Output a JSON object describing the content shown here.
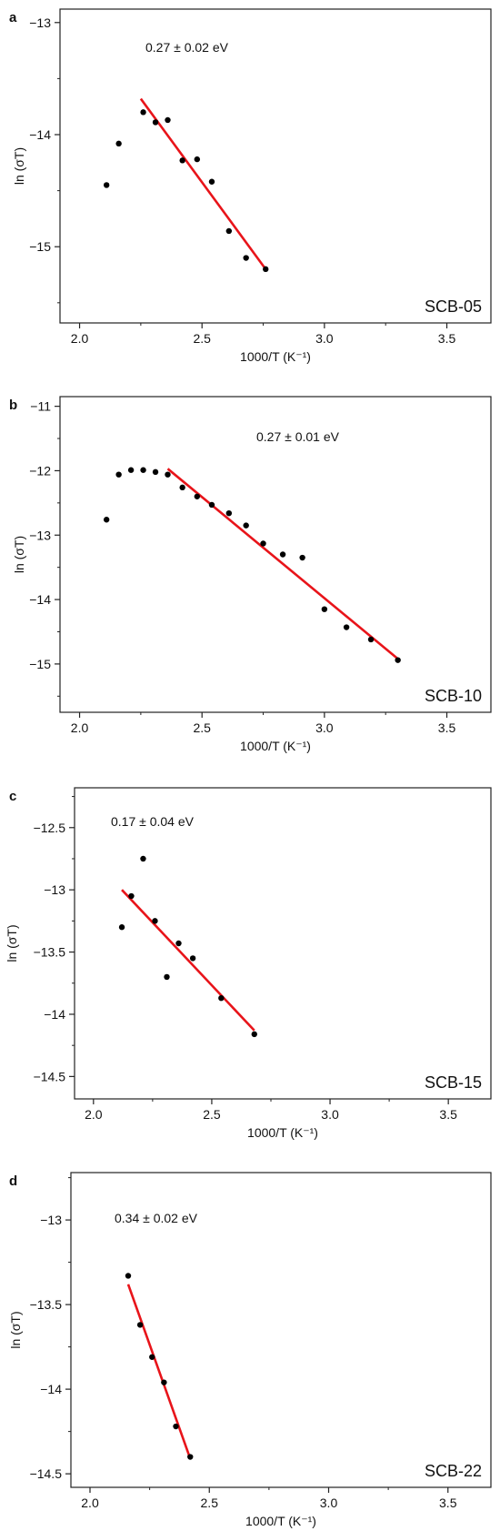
{
  "chart_data": [
    {
      "type": "scatter",
      "panel_label": "a",
      "sample": "SCB-05",
      "annotation": "0.27 ± 0.02 eV",
      "xlabel": "1000/T (K⁻¹)",
      "ylabel": "ln (σT)",
      "xlim": [
        1.92,
        3.68
      ],
      "ylim": [
        -15.68,
        -12.88
      ],
      "xticks": [
        2.0,
        2.5,
        3.0,
        3.5
      ],
      "xtick_labels": [
        "2.0",
        "2.5",
        "3.0",
        "3.5"
      ],
      "yticks": [
        -13,
        -14,
        -15
      ],
      "ytick_labels": [
        "−13",
        "−14",
        "−15"
      ],
      "grid": false,
      "series": [
        {
          "type": "scatter",
          "color": "#000000",
          "x": [
            2.11,
            2.16,
            2.26,
            2.31,
            2.36,
            2.42,
            2.48,
            2.54,
            2.61,
            2.68,
            2.76
          ],
          "y": [
            -14.45,
            -14.08,
            -13.8,
            -13.89,
            -13.87,
            -14.23,
            -14.22,
            -14.42,
            -14.86,
            -15.1,
            -15.2
          ]
        },
        {
          "type": "line",
          "color": "#e8141a",
          "x": [
            2.25,
            2.76
          ],
          "y": [
            -13.68,
            -15.2
          ]
        }
      ]
    },
    {
      "type": "scatter",
      "panel_label": "b",
      "sample": "SCB-10",
      "annotation": "0.27 ± 0.01 eV",
      "xlabel": "1000/T (K⁻¹)",
      "ylabel": "ln (σT)",
      "xlim": [
        1.92,
        3.68
      ],
      "ylim": [
        -15.75,
        -10.85
      ],
      "xticks": [
        2.0,
        2.5,
        3.0,
        3.5
      ],
      "xtick_labels": [
        "2.0",
        "2.5",
        "3.0",
        "3.5"
      ],
      "yticks": [
        -11,
        -12,
        -13,
        -14,
        -15
      ],
      "ytick_labels": [
        "−11",
        "−12",
        "−13",
        "−14",
        "−15"
      ],
      "grid": false,
      "series": [
        {
          "type": "scatter",
          "color": "#000000",
          "x": [
            2.11,
            2.16,
            2.21,
            2.26,
            2.31,
            2.36,
            2.42,
            2.48,
            2.54,
            2.61,
            2.68,
            2.75,
            2.83,
            2.91,
            3.0,
            3.09,
            3.19,
            3.3
          ],
          "y": [
            -12.76,
            -12.06,
            -11.99,
            -11.99,
            -12.02,
            -12.06,
            -12.26,
            -12.4,
            -12.53,
            -12.66,
            -12.85,
            -13.13,
            -13.3,
            -13.35,
            -14.15,
            -14.43,
            -14.62,
            -14.94
          ]
        },
        {
          "type": "line",
          "color": "#e8141a",
          "x": [
            2.36,
            3.3
          ],
          "y": [
            -11.97,
            -14.92
          ]
        }
      ]
    },
    {
      "type": "scatter",
      "panel_label": "c",
      "sample": "SCB-15",
      "annotation": "0.17 ± 0.04 eV",
      "xlabel": "1000/T (K⁻¹)",
      "ylabel": "ln (σT)",
      "xlim": [
        1.92,
        3.68
      ],
      "ylim": [
        -14.68,
        -12.18
      ],
      "xticks": [
        2.0,
        2.5,
        3.0,
        3.5
      ],
      "xtick_labels": [
        "2.0",
        "2.5",
        "3.0",
        "3.5"
      ],
      "yticks": [
        -12.5,
        -13,
        -13.5,
        -14,
        -14.5
      ],
      "ytick_labels": [
        "−12.5",
        "−13",
        "−13.5",
        "−14",
        "−14.5"
      ],
      "grid": false,
      "series": [
        {
          "type": "scatter",
          "color": "#000000",
          "x": [
            2.12,
            2.16,
            2.21,
            2.26,
            2.31,
            2.36,
            2.42,
            2.54,
            2.68
          ],
          "y": [
            -13.3,
            -13.05,
            -12.75,
            -13.25,
            -13.7,
            -13.43,
            -13.55,
            -13.87,
            -14.16
          ]
        },
        {
          "type": "line",
          "color": "#e8141a",
          "x": [
            2.12,
            2.68
          ],
          "y": [
            -13.0,
            -14.13
          ]
        }
      ]
    },
    {
      "type": "scatter",
      "panel_label": "d",
      "sample": "SCB-22",
      "annotation": "0.34 ± 0.02 eV",
      "xlabel": "1000/T (K⁻¹)",
      "ylabel": "ln (σT)",
      "xlim": [
        1.92,
        3.68
      ],
      "ylim": [
        -14.58,
        -12.72
      ],
      "xticks": [
        2.0,
        2.5,
        3.0,
        3.5
      ],
      "xtick_labels": [
        "2.0",
        "2.5",
        "3.0",
        "3.5"
      ],
      "yticks": [
        -13,
        -13.5,
        -14,
        -14.5
      ],
      "ytick_labels": [
        "−13",
        "−13.5",
        "−14",
        "−14.5"
      ],
      "grid": false,
      "series": [
        {
          "type": "scatter",
          "color": "#000000",
          "x": [
            2.16,
            2.21,
            2.26,
            2.31,
            2.36,
            2.42
          ],
          "y": [
            -13.33,
            -13.62,
            -13.81,
            -13.96,
            -14.22,
            -14.4
          ]
        },
        {
          "type": "line",
          "color": "#e8141a",
          "x": [
            2.16,
            2.42
          ],
          "y": [
            -13.38,
            -14.41
          ]
        }
      ]
    }
  ]
}
